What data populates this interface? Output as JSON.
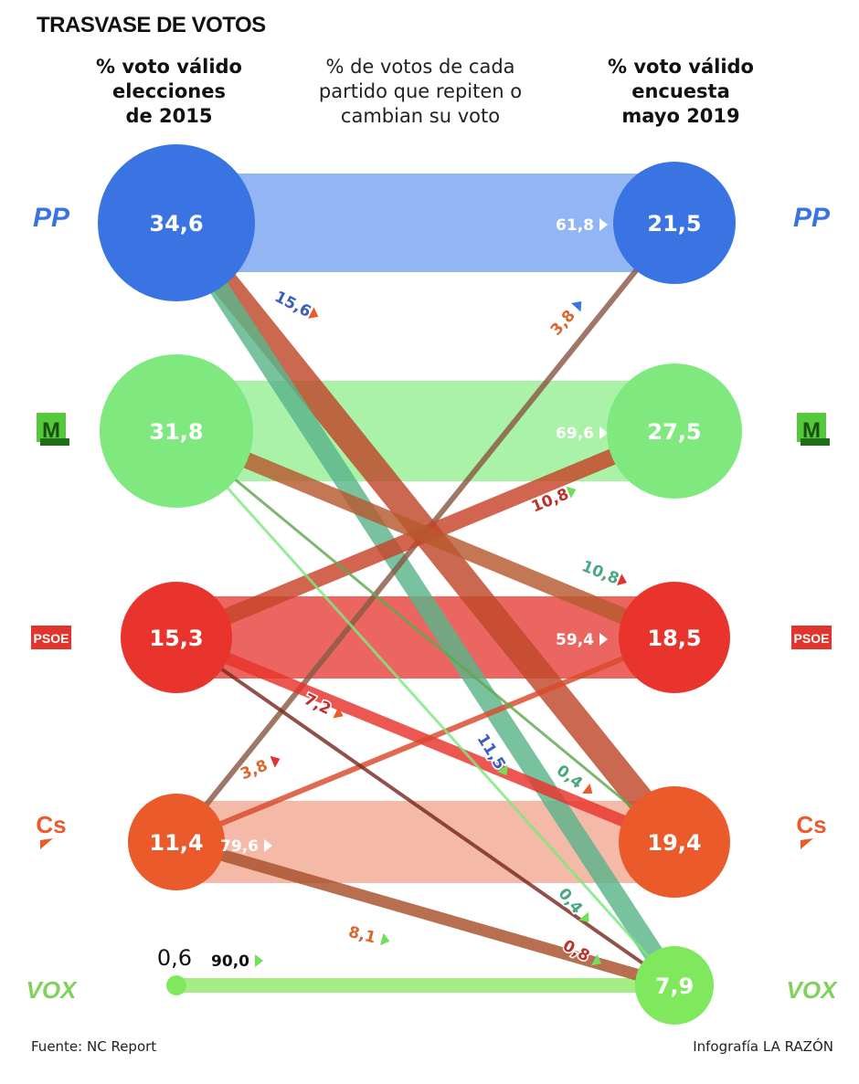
{
  "title": "TRASVASE DE VOTOS",
  "headers": {
    "left": [
      "% voto válido",
      "elecciones",
      "de 2015"
    ],
    "middle": [
      "% de votos de cada",
      "partido que repiten o",
      "cambian su voto"
    ],
    "right": [
      "% voto válido",
      "encuesta",
      "mayo 2019"
    ]
  },
  "footer": {
    "source": "Fuente: NC Report",
    "credit": "Infografía LA RAZÓN"
  },
  "chart_data": {
    "type": "flow",
    "parties": [
      {
        "id": "PP",
        "logo": "PP",
        "color": "#3a74e3",
        "light": "#6e9ef0",
        "vote_2015": "34,6",
        "vote_2019": "21,5"
      },
      {
        "id": "Mas Madrid",
        "logo": "M",
        "color": "#7fe87f",
        "light": "#8ced8a",
        "vote_2015": "31,8",
        "vote_2019": "27,5"
      },
      {
        "id": "PSOE",
        "logo": "PSOE",
        "color": "#e8342c",
        "light": "#ea5550",
        "vote_2015": "15,3",
        "vote_2019": "18,5"
      },
      {
        "id": "Cs",
        "logo": "Cs",
        "color": "#eb5a2a",
        "light": "#ef9d82",
        "vote_2015": "11,4",
        "vote_2019": "19,4"
      },
      {
        "id": "VOX",
        "logo": "VOX",
        "color": "#7fe85c",
        "light": "#9beb7a",
        "vote_2015": "0,6",
        "vote_2019": "7,9"
      }
    ],
    "retention": [
      {
        "party": "PP",
        "value": "61,8"
      },
      {
        "party": "Mas Madrid",
        "value": "69,6"
      },
      {
        "party": "PSOE",
        "value": "59,4"
      },
      {
        "party": "Cs",
        "value": "79,6"
      },
      {
        "party": "VOX",
        "value": "90,0"
      }
    ],
    "flows": [
      {
        "from": "PP",
        "to": "Cs",
        "value": "15,6",
        "color": "#c0482a",
        "label_color": "#3a5fbf",
        "arrow_color": "#eb5a2a"
      },
      {
        "from": "PP",
        "to": "VOX",
        "value": "11,5",
        "color": "#5bb58a",
        "label_color": "#3a5fbf",
        "arrow_color": "#6fe05c"
      },
      {
        "from": "Cs",
        "to": "PP",
        "value": "3,8",
        "color": "#8a5a45",
        "label_color": "#d8682f",
        "arrow_color": "#3a74e3"
      },
      {
        "from": "PSOE",
        "to": "Mas Madrid",
        "value": "10,8",
        "color": "#c8442a",
        "label_color": "#c0302a",
        "arrow_color": "#6fe05c"
      },
      {
        "from": "Mas Madrid",
        "to": "PSOE",
        "value": "10,8",
        "color": "#b85a30",
        "label_color": "#4aa880",
        "arrow_color": "#e0342c"
      },
      {
        "from": "PSOE",
        "to": "Cs",
        "value": "7,2",
        "color": "#e8342c",
        "label_color": "#c0302a",
        "arrow_color": "#eb5a2a"
      },
      {
        "from": "Cs",
        "to": "PSOE",
        "value": "3,8",
        "color": "#d94a2c",
        "label_color": "#d8682f",
        "arrow_color": "#e0342c"
      },
      {
        "from": "Mas Madrid",
        "to": "Cs",
        "value": "0,4",
        "color": "#60a850",
        "label_color": "#4aa880",
        "arrow_color": "#eb5a2a"
      },
      {
        "from": "Mas Madrid",
        "to": "VOX",
        "value": "0,4",
        "color": "#7fe87f",
        "label_color": "#4aa880",
        "arrow_color": "#6fe05c"
      },
      {
        "from": "Cs",
        "to": "VOX",
        "value": "8,1",
        "color": "#a8502a",
        "label_color": "#d8682f",
        "arrow_color": "#6fe05c"
      },
      {
        "from": "PSOE",
        "to": "VOX",
        "value": "0,8",
        "color": "#7a2a20",
        "label_color": "#c0302a",
        "arrow_color": "#6fe05c"
      }
    ]
  }
}
